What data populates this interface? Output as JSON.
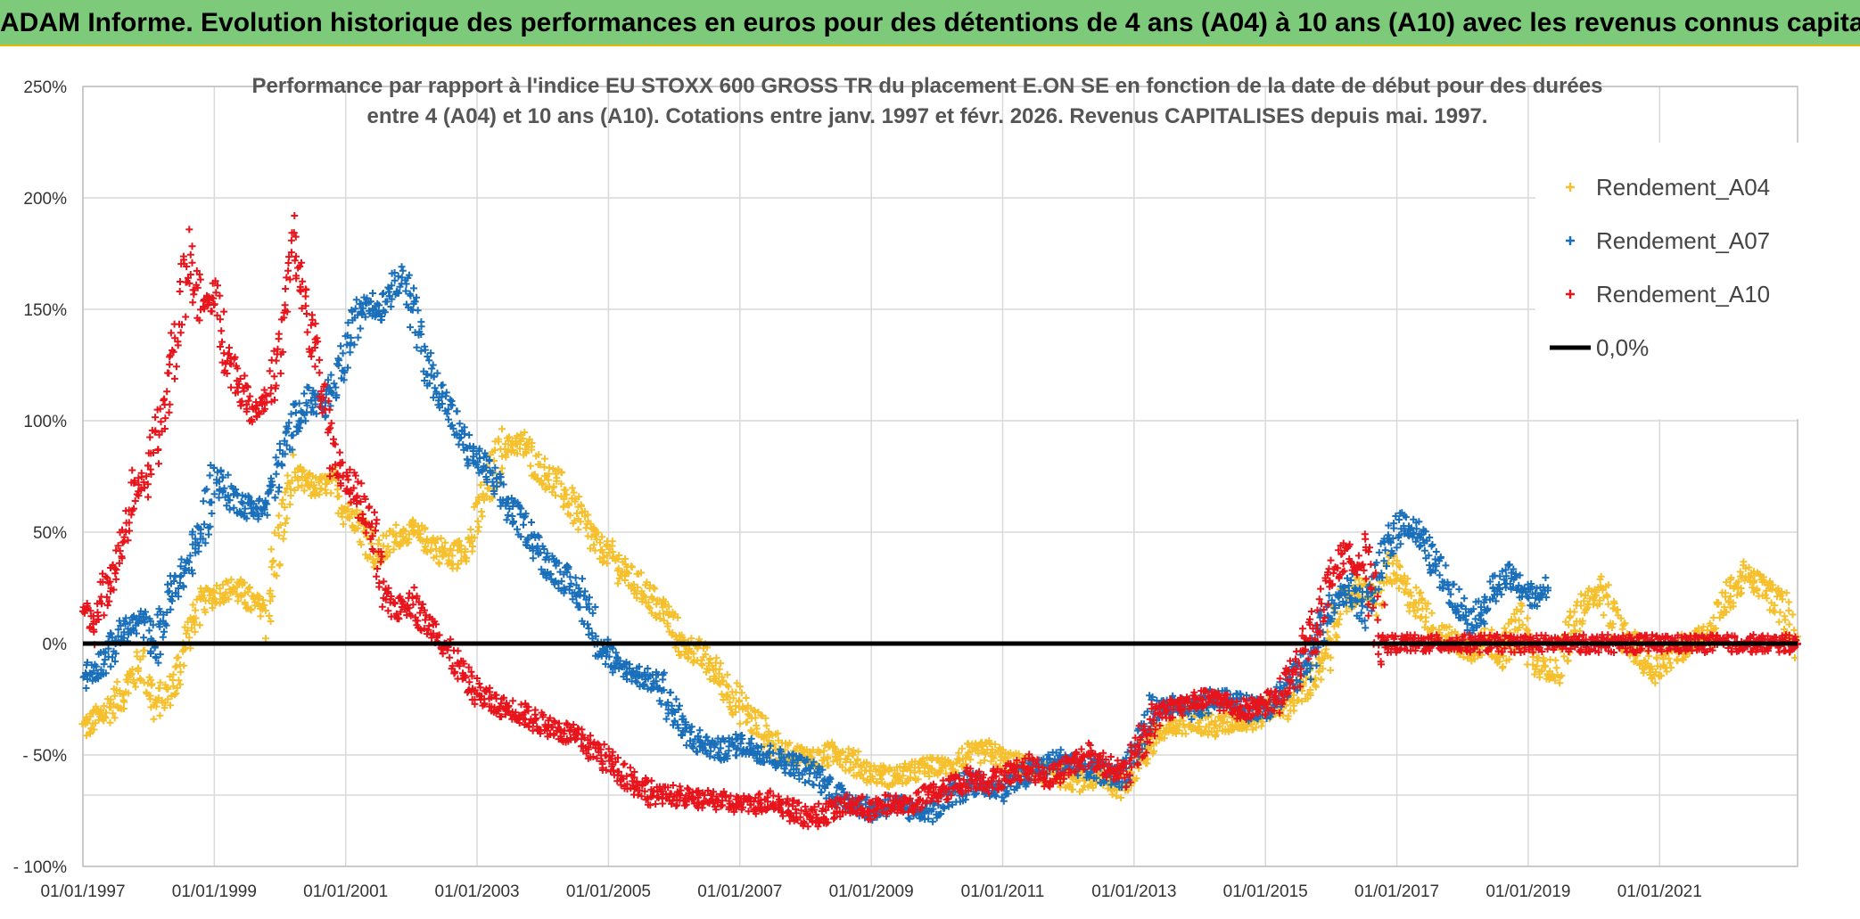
{
  "header": {
    "title": "ADAM Informe. Evolution historique des performances en euros pour des détentions de 4 ans (A04) à 10 ans (A10) avec les revenus connus capitalisés"
  },
  "chart_data": {
    "type": "scatter",
    "title_lines": [
      "Performance par rapport à l'indice EU STOXX 600 GROSS TR  du placement E.ON SE en fonction de la date de début pour des durées",
      "entre 4 (A04) et 10 ans (A10). Cotations entre janv. 1997 et févr. 2026. Revenus CAPITALISES depuis mai. 1997."
    ],
    "x_ticks": [
      "01/01/1997",
      "01/01/1999",
      "01/01/2001",
      "01/01/2003",
      "01/01/2005",
      "01/01/2007",
      "01/01/2009",
      "01/01/2011",
      "01/01/2013",
      "01/01/2015",
      "01/01/2017",
      "01/01/2019",
      "01/01/2021"
    ],
    "y_ticks": [
      "250%",
      "200%",
      "150%",
      "100%",
      "50%",
      "0%",
      "- 50%",
      "- 100%"
    ],
    "xlim": [
      1997.0,
      2023.1
    ],
    "ylim": [
      -100,
      250
    ],
    "legend_position": "top-right",
    "series": [
      {
        "name": "Rendement_A04",
        "color": "#f5c02c",
        "x": [
          1997.0,
          1997.3,
          1997.6,
          1997.9,
          1998.1,
          1998.4,
          1998.6,
          1998.8,
          1999.0,
          1999.3,
          1999.6,
          1999.8,
          2000.0,
          2000.2,
          2000.5,
          2000.8,
          2001.0,
          2001.2,
          2001.5,
          2001.8,
          2002.0,
          2002.3,
          2002.6,
          2002.9,
          2003.1,
          2003.4,
          2003.7,
          2003.9,
          2004.2,
          2004.5,
          2004.8,
          2005.0,
          2005.3,
          2005.6,
          2005.9,
          2006.1,
          2006.4,
          2006.7,
          2007.0,
          2007.3,
          2007.6,
          2007.9,
          2008.2,
          2008.5,
          2008.8,
          2009.0,
          2009.3,
          2009.6,
          2009.9,
          2010.2,
          2010.5,
          2010.8,
          2011.0,
          2011.3,
          2011.6,
          2011.9,
          2012.2,
          2012.5,
          2012.8,
          2013.0,
          2013.3,
          2013.6,
          2013.9,
          2014.2,
          2014.5,
          2014.8,
          2015.0,
          2015.3,
          2015.6,
          2015.9,
          2016.1,
          2016.4,
          2016.7,
          2016.9,
          2017.1,
          2017.4,
          2017.6,
          2017.9,
          2018.1,
          2018.4,
          2018.6,
          2018.9,
          2019.1,
          2019.4,
          2019.7,
          2019.9,
          2020.1,
          2020.4,
          2020.7,
          2020.9,
          2021.2,
          2021.5,
          2021.8,
          2022.0,
          2022.3,
          2022.6,
          2022.9,
          2023.1
        ],
        "y": [
          -38,
          -32,
          -22,
          -8,
          -28,
          -18,
          5,
          18,
          22,
          25,
          18,
          16,
          50,
          75,
          70,
          72,
          60,
          55,
          40,
          48,
          50,
          45,
          38,
          45,
          65,
          88,
          90,
          80,
          72,
          60,
          45,
          40,
          30,
          22,
          12,
          0,
          -5,
          -15,
          -28,
          -38,
          -48,
          -50,
          -52,
          -48,
          -55,
          -58,
          -60,
          -58,
          -55,
          -55,
          -50,
          -48,
          -52,
          -55,
          -58,
          -60,
          -62,
          -60,
          -64,
          -55,
          -42,
          -38,
          -32,
          -38,
          -35,
          -35,
          -30,
          -28,
          -20,
          -10,
          15,
          25,
          20,
          35,
          25,
          15,
          5,
          0,
          -3,
          2,
          -5,
          10,
          -10,
          -12,
          8,
          20,
          22,
          5,
          -5,
          -12,
          -5,
          2,
          5,
          20,
          30,
          25,
          15,
          0
        ]
      },
      {
        "name": "Rendement_A07",
        "color": "#1a6fba",
        "x": [
          1997.0,
          1997.3,
          1997.6,
          1997.9,
          1998.1,
          1998.4,
          1998.6,
          1998.8,
          1999.0,
          1999.3,
          1999.6,
          1999.8,
          2000.0,
          2000.2,
          2000.5,
          2000.7,
          2000.9,
          2001.1,
          2001.3,
          2001.5,
          2001.7,
          2001.9,
          2002.1,
          2002.3,
          2002.5,
          2002.7,
          2002.9,
          2003.1,
          2003.3,
          2003.5,
          2003.8,
          2004.0,
          2004.3,
          2004.6,
          2004.9,
          2005.1,
          2005.3,
          2005.5,
          2005.8,
          2006.1,
          2006.4,
          2006.7,
          2007.0,
          2007.3,
          2007.6,
          2007.9,
          2008.2,
          2008.5,
          2008.8,
          2009.0,
          2009.3,
          2009.6,
          2009.9,
          2010.2,
          2010.5,
          2010.8,
          2011.0,
          2011.3,
          2011.6,
          2011.9,
          2012.2,
          2012.5,
          2012.8,
          2013.0,
          2013.3,
          2013.6,
          2013.9,
          2014.2,
          2014.5,
          2014.8,
          2015.0,
          2015.3,
          2015.6,
          2015.9,
          2016.1,
          2016.3,
          2016.5,
          2016.7,
          2016.9,
          2017.1,
          2017.3,
          2017.5,
          2017.7,
          2017.9,
          2018.1,
          2018.3,
          2018.5,
          2018.7,
          2018.9,
          2019.1,
          2019.3
        ],
        "y": [
          -15,
          -8,
          5,
          10,
          0,
          25,
          35,
          50,
          75,
          65,
          60,
          62,
          80,
          100,
          110,
          105,
          120,
          140,
          155,
          150,
          160,
          165,
          140,
          120,
          110,
          95,
          85,
          80,
          70,
          60,
          50,
          38,
          30,
          20,
          0,
          -10,
          -12,
          -15,
          -18,
          -38,
          -45,
          -48,
          -45,
          -48,
          -52,
          -55,
          -60,
          -68,
          -72,
          -75,
          -72,
          -75,
          -75,
          -70,
          -62,
          -65,
          -65,
          -60,
          -55,
          -52,
          -55,
          -58,
          -60,
          -48,
          -30,
          -28,
          -30,
          -25,
          -25,
          -30,
          -28,
          -20,
          -10,
          10,
          20,
          25,
          15,
          30,
          45,
          55,
          50,
          40,
          30,
          20,
          10,
          15,
          25,
          30,
          25,
          20,
          25
        ]
      },
      {
        "name": "Rendement_A10",
        "color": "#e8141c",
        "x": [
          1997.0,
          1997.2,
          1997.4,
          1997.6,
          1997.8,
          1998.0,
          1998.2,
          1998.4,
          1998.6,
          1998.8,
          1999.0,
          1999.2,
          1999.4,
          1999.6,
          1999.8,
          2000.0,
          2000.2,
          2000.4,
          2000.6,
          2000.8,
          2001.0,
          2001.2,
          2001.4,
          2001.6,
          2001.8,
          2002.0,
          2002.2,
          2002.4,
          2002.6,
          2002.8,
          2003.0,
          2003.3,
          2003.6,
          2003.9,
          2004.2,
          2004.5,
          2004.8,
          2005.1,
          2005.4,
          2005.7,
          2006.0,
          2006.3,
          2006.6,
          2006.9,
          2007.2,
          2007.5,
          2007.8,
          2008.1,
          2008.4,
          2008.7,
          2009.0,
          2009.3,
          2009.6,
          2009.9,
          2010.2,
          2010.5,
          2010.8,
          2011.1,
          2011.4,
          2011.7,
          2012.0,
          2012.3,
          2012.6,
          2012.9,
          2013.1,
          2013.4,
          2013.7,
          2014.0,
          2014.3,
          2014.6,
          2014.9,
          2015.2,
          2015.5,
          2015.8,
          2016.0,
          2016.2,
          2016.5,
          2016.8,
          2017.0,
          2017.5,
          2018.0,
          2018.5,
          2019.0,
          2019.5,
          2020.0,
          2020.5,
          2021.0,
          2021.5,
          2022.0,
          2022.5,
          2023.1
        ],
        "y": [
          15,
          10,
          30,
          45,
          70,
          75,
          100,
          135,
          175,
          150,
          155,
          130,
          115,
          105,
          110,
          130,
          180,
          150,
          120,
          85,
          75,
          65,
          50,
          20,
          15,
          20,
          10,
          5,
          -5,
          -15,
          -22,
          -28,
          -30,
          -35,
          -38,
          -42,
          -48,
          -55,
          -62,
          -68,
          -68,
          -70,
          -70,
          -72,
          -72,
          -70,
          -75,
          -78,
          -75,
          -72,
          -75,
          -72,
          -72,
          -68,
          -65,
          -60,
          -62,
          -58,
          -55,
          -60,
          -55,
          -50,
          -55,
          -58,
          -45,
          -30,
          -28,
          -25,
          -25,
          -30,
          -28,
          -25,
          -10,
          10,
          30,
          40,
          35,
          0,
          0,
          0,
          0,
          0,
          0,
          0,
          0,
          0,
          0,
          0,
          0,
          0,
          0
        ]
      }
    ],
    "zero_line": {
      "name": "0,0%",
      "value": 0,
      "color": "#000000"
    }
  }
}
